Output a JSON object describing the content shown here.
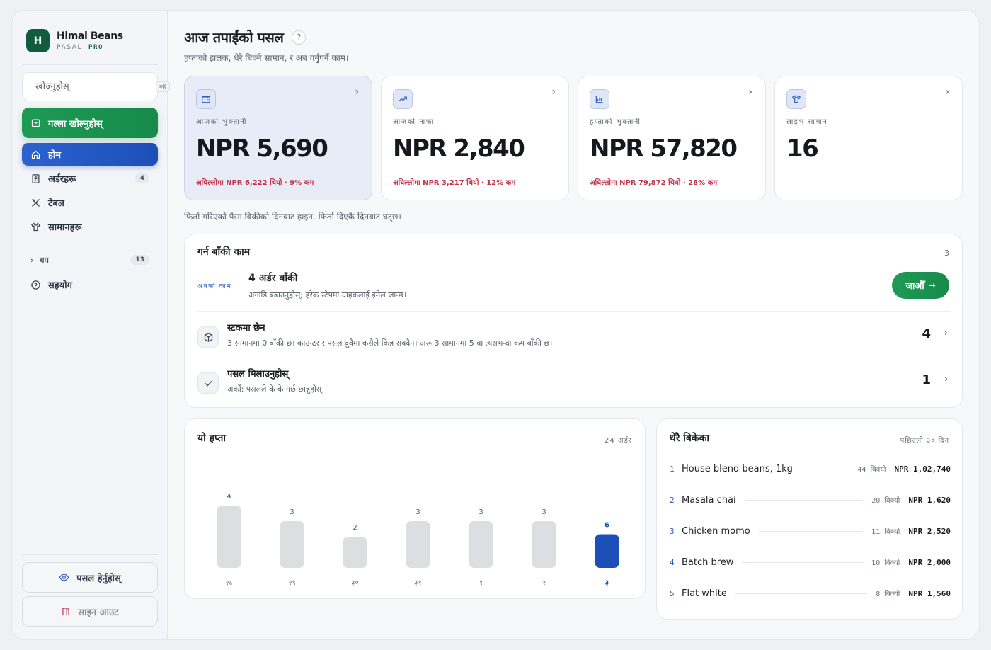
{
  "brand": {
    "logo_letter": "H",
    "name": "Himal Beans",
    "sub": "PASAL",
    "tier": "PRO"
  },
  "search": {
    "placeholder": "खोज्नुहोस्",
    "shortcut": "⌘K"
  },
  "sidebar": {
    "primary_action": "गल्ला खोल्नुहोस्",
    "items": [
      {
        "label": "होम",
        "icon": "home-icon",
        "active": true
      },
      {
        "label": "अर्डरहरू",
        "icon": "receipt-icon",
        "badge": "4"
      },
      {
        "label": "टेबल",
        "icon": "utensils-icon"
      },
      {
        "label": "सामानहरू",
        "icon": "shirt-icon"
      }
    ],
    "more": {
      "label": "थप",
      "badge": "13"
    },
    "support": "सहयोग",
    "view_shop": "पसल हेर्नुहोस्",
    "sign_out": "साइन आउट"
  },
  "header": {
    "title": "आज तपाईंको पसल",
    "help": "?",
    "subtitle": "हप्ताको झलक, धेरै बिक्ने सामान, र अब गर्नुपर्ने काम।"
  },
  "stats": [
    {
      "label": "आजको भुक्तानी",
      "value": "NPR 5,690",
      "delta": "अघिल्लोमा NPR 6,222 थियो · 9% कम",
      "icon": "wallet-icon",
      "highlight": true
    },
    {
      "label": "आजको नाफा",
      "value": "NPR 2,840",
      "delta": "अघिल्लोमा NPR 3,217 थियो · 12% कम",
      "icon": "trend-up-icon"
    },
    {
      "label": "हप्ताको भुक्तानी",
      "value": "NPR 57,820",
      "delta": "अघिल्लोमा NPR 79,872 थियो · 28% कम",
      "icon": "bar-chart-icon"
    },
    {
      "label": "लाइभ सामान",
      "value": "16",
      "delta": "",
      "icon": "shirt-icon"
    }
  ],
  "refund_note": "फिर्ता गरिएको पैसा बिक्रीको दिनबाट हाइन, फिर्ता दिएकै दिनबाट घट्छ।",
  "tasks": {
    "title": "गर्न बाँकी काम",
    "count": "3",
    "now": {
      "label": "अबको काम",
      "title": "4 अर्डर बाँकी",
      "desc": "अगाडि बढाउनुहोस्; हरेक स्टेपमा ग्राहकलाई इमेल जान्छ।",
      "button": "जाऔँ"
    },
    "rows": [
      {
        "icon": "box-icon",
        "title": "स्टकमा छैन",
        "desc": "3 सामानमा 0 बाँकी छ। काउन्टर र पसल दुवैमा कसैले किन्न सक्दैन। अरू 3 सामानमा 5 वा त्यसभन्दा कम बाँकी छ।",
        "count": "4"
      },
      {
        "icon": "check-icon",
        "title": "पसल मिलाउनुहोस्",
        "desc": "अर्को: पसलले के के गर्छ छान्नुहोस्",
        "count": "1"
      }
    ]
  },
  "week": {
    "title": "यो हप्ता",
    "meta": "24 अर्डर",
    "chart_data": {
      "type": "bar",
      "categories": [
        "२८",
        "२९",
        "३०",
        "३१",
        "१",
        "२",
        "३"
      ],
      "values": [
        4,
        3,
        2,
        3,
        3,
        3,
        6
      ],
      "highlight_index": 6,
      "colors": {
        "bar": "#dcdee2",
        "highlight": "#1c4fb8"
      }
    }
  },
  "top": {
    "title": "धेरै बिकेका",
    "meta": "पछिल्लो ३० दिन",
    "items": [
      {
        "rank": "1",
        "name": "House blend beans, 1kg",
        "sold": "44 बिक्यो",
        "revenue": "NPR 1,02,740"
      },
      {
        "rank": "2",
        "name": "Masala chai",
        "sold": "20 बिक्यो",
        "revenue": "NPR 1,620"
      },
      {
        "rank": "3",
        "name": "Chicken momo",
        "sold": "11 बिक्यो",
        "revenue": "NPR 2,520"
      },
      {
        "rank": "4",
        "name": "Batch brew",
        "sold": "10 बिक्यो",
        "revenue": "NPR 2,000"
      },
      {
        "rank": "5",
        "name": "Flat white",
        "sold": "8 बिक्यो",
        "revenue": "NPR 1,560"
      }
    ]
  }
}
